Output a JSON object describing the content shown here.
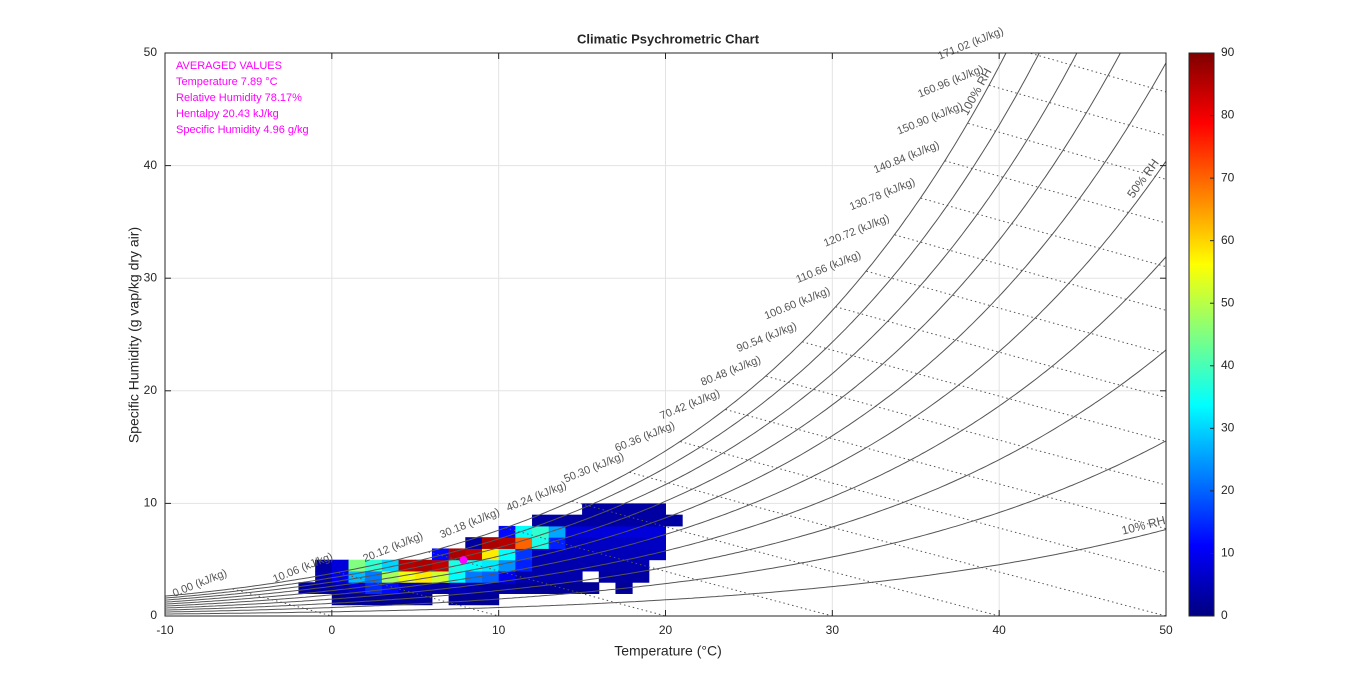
{
  "chart_data": {
    "type": "psychrometric",
    "title": "Climatic Psychrometric Chart",
    "x_label": "Temperature (°C)",
    "y_label": "Specific Humidity (g vap/kg dry air)",
    "xlim": [
      -10,
      50
    ],
    "ylim": [
      0,
      50
    ],
    "xticks": [
      -10,
      0,
      10,
      20,
      30,
      40,
      50
    ],
    "yticks": [
      0,
      10,
      20,
      30,
      40,
      50
    ],
    "grid": true,
    "rh_levels": [
      10,
      20,
      30,
      40,
      50,
      60,
      70,
      80,
      90,
      100
    ],
    "rh_labels": [
      {
        "value": 100,
        "label": "100% RH"
      },
      {
        "value": 50,
        "label": "50% RH"
      },
      {
        "value": 10,
        "label": "10% RH"
      }
    ],
    "enthalpy_lines": {
      "values": [
        0,
        10.06,
        20.12,
        30.18,
        40.24,
        50.3,
        60.36,
        70.42,
        80.48,
        90.54,
        100.6,
        110.66,
        120.72,
        130.78,
        140.84,
        150.9,
        160.96,
        171.02
      ],
      "value_labels": [
        "0.00 (kJ/kg)",
        "10.06 (kJ/kg)",
        "20.12 (kJ/kg)",
        "30.18 (kJ/kg)",
        "40.24 (kJ/kg)",
        "50.30 (kJ/kg)",
        "60.36 (kJ/kg)",
        "70.42 (kJ/kg)",
        "80.48 (kJ/kg)",
        "90.54 (kJ/kg)",
        "100.60 (kJ/kg)",
        "110.66 (kJ/kg)",
        "120.72 (kJ/kg)",
        "130.78 (kJ/kg)",
        "140.84 (kJ/kg)",
        "150.90 (kJ/kg)",
        "160.96 (kJ/kg)",
        "171.02 (kJ/kg)"
      ]
    },
    "heatmap": {
      "xbins": [
        -2,
        -1,
        0,
        1,
        2,
        3,
        4,
        5,
        6,
        7,
        8,
        9,
        10,
        11,
        12,
        13,
        14,
        15,
        16,
        17,
        18,
        19,
        20,
        21
      ],
      "ybins": [
        1,
        2,
        3,
        4,
        5,
        6,
        7,
        8,
        9,
        10
      ],
      "z": [
        [
          null,
          null,
          2,
          2,
          2,
          2,
          2,
          2,
          null,
          2,
          2,
          2,
          null,
          null,
          null,
          null,
          null,
          null,
          null,
          null,
          null,
          null,
          null
        ],
        [
          3,
          3,
          4,
          8,
          15,
          12,
          5,
          4,
          3,
          5,
          4,
          3,
          3,
          2,
          2,
          2,
          2,
          2,
          null,
          2,
          null,
          null,
          null
        ],
        [
          null,
          4,
          10,
          28,
          22,
          48,
          55,
          58,
          52,
          34,
          22,
          20,
          10,
          4,
          4,
          4,
          4,
          null,
          3,
          3,
          3,
          null,
          null
        ],
        [
          null,
          3,
          8,
          45,
          38,
          30,
          85,
          86,
          84,
          36,
          34,
          32,
          24,
          14,
          4,
          4,
          4,
          4,
          4,
          4,
          4,
          null,
          null
        ],
        [
          null,
          null,
          null,
          null,
          null,
          null,
          null,
          null,
          12,
          86,
          84,
          58,
          34,
          16,
          5,
          5,
          5,
          5,
          5,
          5,
          5,
          5,
          null
        ],
        [
          null,
          null,
          null,
          null,
          null,
          null,
          null,
          null,
          null,
          null,
          3,
          86,
          85,
          70,
          36,
          14,
          6,
          6,
          6,
          6,
          6,
          6,
          null
        ],
        [
          null,
          null,
          null,
          null,
          null,
          null,
          null,
          null,
          null,
          null,
          null,
          null,
          12,
          34,
          38,
          26,
          8,
          8,
          8,
          8,
          8,
          8,
          null
        ],
        [
          null,
          null,
          null,
          null,
          null,
          null,
          null,
          null,
          null,
          null,
          null,
          null,
          null,
          null,
          3,
          3,
          3,
          3,
          3,
          3,
          3,
          3,
          3
        ],
        [
          null,
          null,
          null,
          null,
          null,
          null,
          null,
          null,
          null,
          null,
          null,
          null,
          null,
          null,
          null,
          null,
          null,
          3,
          3,
          3,
          3,
          3,
          null
        ]
      ]
    },
    "colorbar": {
      "lim": [
        0,
        90
      ],
      "ticks": [
        0,
        10,
        20,
        30,
        40,
        50,
        60,
        70,
        80,
        90
      ]
    },
    "average": {
      "title": "AVERAGED VALUES",
      "color": "#ff00ff",
      "items": [
        {
          "label": "Temperature  7.89 °C",
          "value": 7.89
        },
        {
          "label": "Relative Humidity 78.17%",
          "value": 78.17
        },
        {
          "label": "Hentalpy 20.43 kJ/kg",
          "value": 20.43
        },
        {
          "label": "Specific Humidity  4.96 g/kg",
          "value": 4.96
        }
      ]
    }
  }
}
